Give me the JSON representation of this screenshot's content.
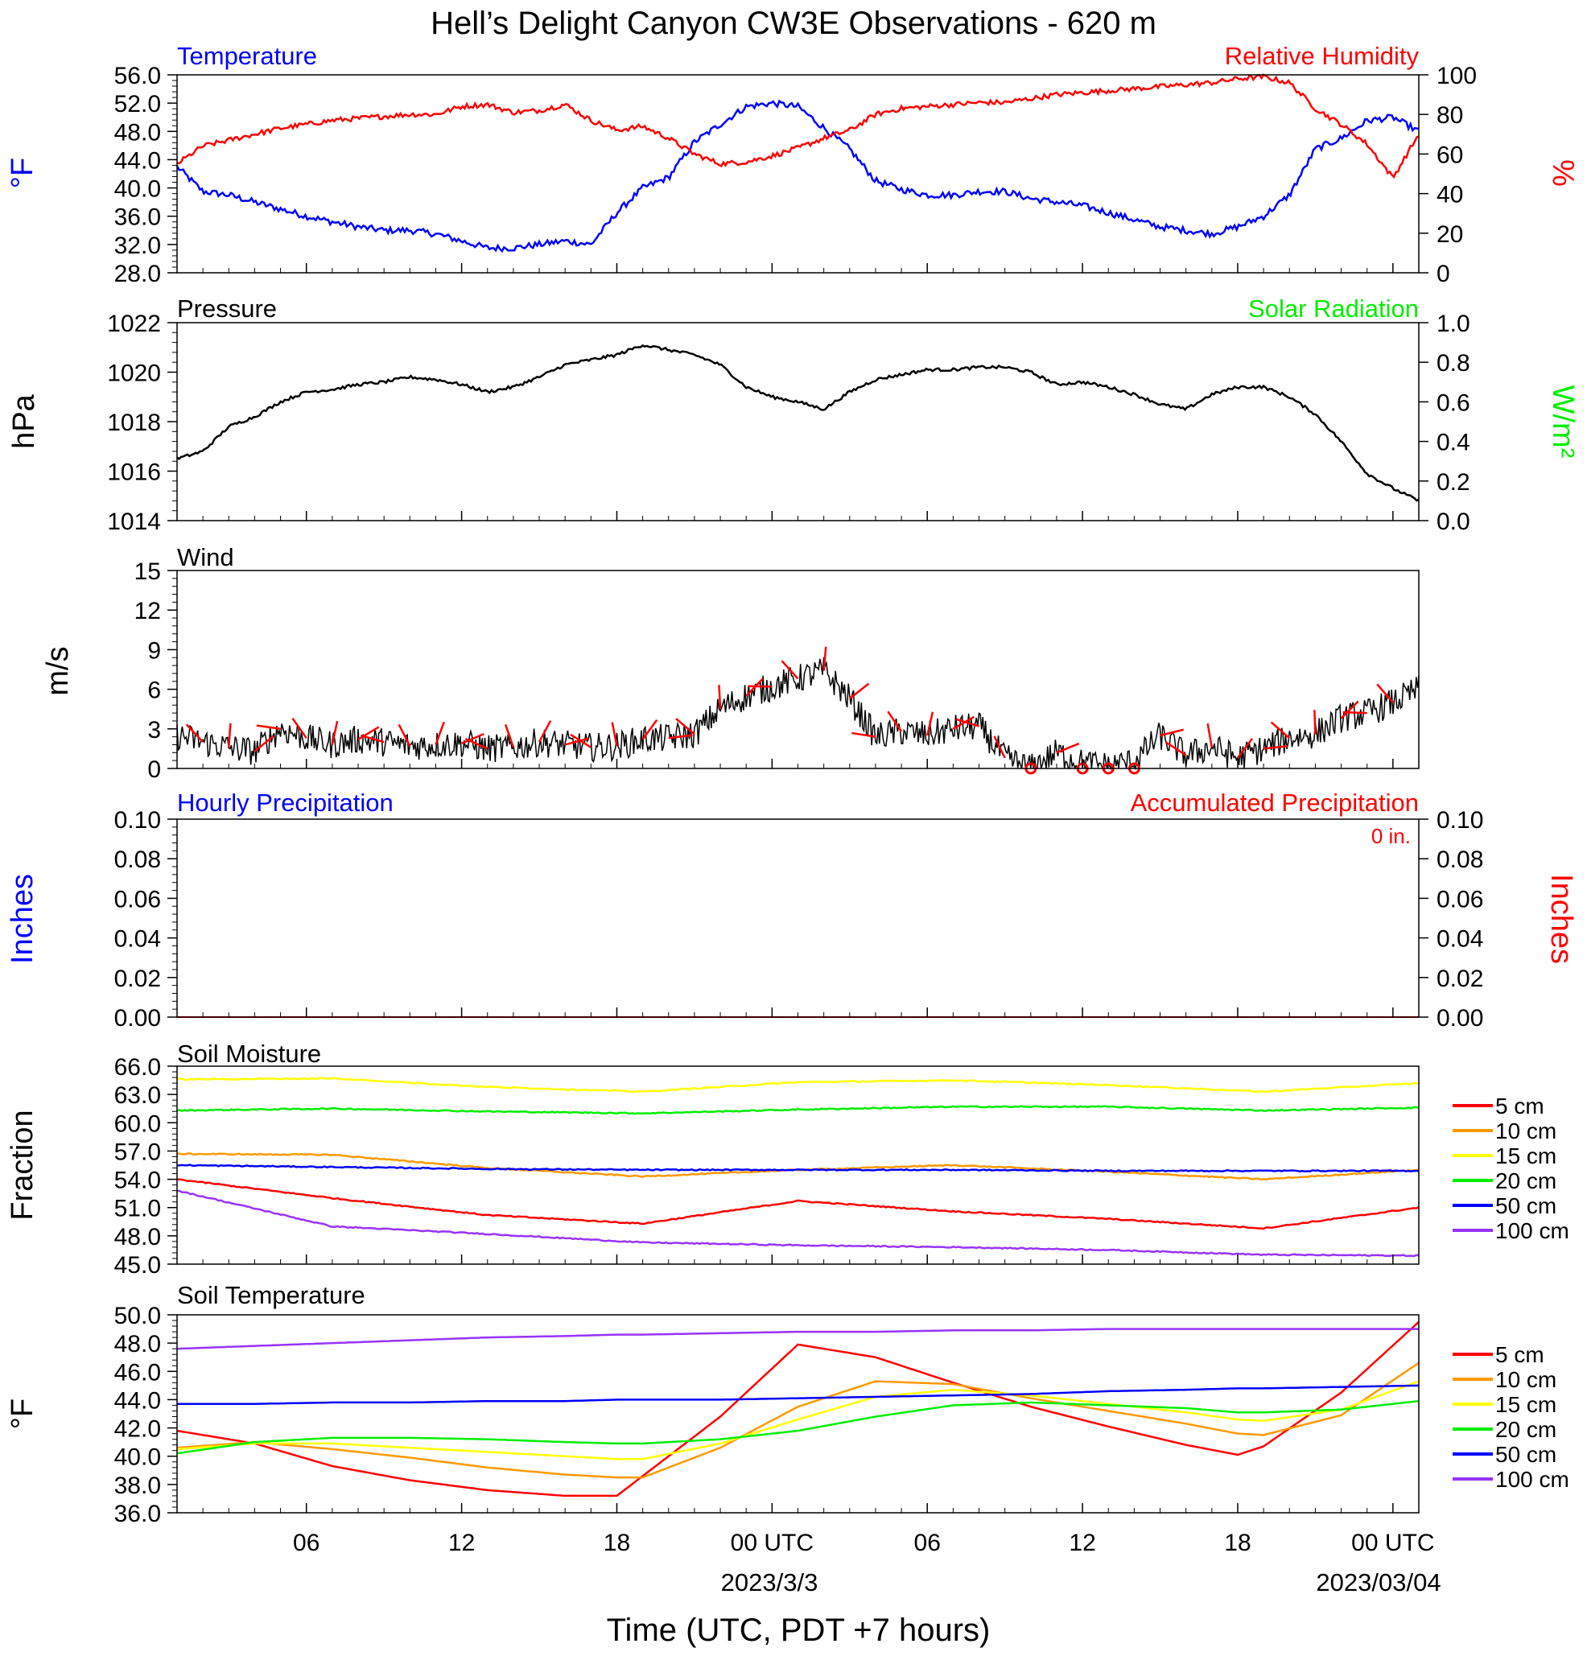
{
  "title": "Hell’s Delight Canyon CW3E Observations - 620 m",
  "xlabel": "Time (UTC, PDT +7 hours)",
  "x_ticks": [
    "06",
    "12",
    "18",
    "00 UTC",
    "06",
    "12",
    "18",
    "00 UTC"
  ],
  "date_labels": [
    "2023/3/3",
    "2023/03/04"
  ],
  "colors": {
    "blue": "#0000ff",
    "red": "#ff0000",
    "green": "#00ee00",
    "orange": "#ff9900",
    "yellow": "#ffff00",
    "purple": "#9933ff",
    "black": "#000000"
  },
  "panels": {
    "temperature": {
      "title_left": "Temperature",
      "title_right": "Relative Humidity",
      "left_unit": "°F",
      "right_unit": "%",
      "left_ticks": [
        "56.0",
        "52.0",
        "48.0",
        "44.0",
        "40.0",
        "36.0",
        "32.0",
        "28.0"
      ],
      "right_ticks": [
        "100",
        "80",
        "60",
        "40",
        "20",
        "0"
      ]
    },
    "pressure": {
      "title_left": "Pressure",
      "title_right": "Solar Radiation",
      "left_unit": "hPa",
      "right_unit": "W/m²",
      "left_ticks": [
        "1022",
        "1020",
        "1018",
        "1016",
        "1014"
      ],
      "right_ticks": [
        "1.0",
        "0.8",
        "0.6",
        "0.4",
        "0.2",
        "0.0"
      ]
    },
    "wind": {
      "title_left": "Wind",
      "left_unit": "m/s",
      "left_ticks": [
        "15",
        "12",
        "9",
        "6",
        "3",
        "0"
      ]
    },
    "precip": {
      "title_left": "Hourly Precipitation",
      "title_right": "Accumulated Precipitation",
      "total_label": "0 in.",
      "left_unit": "Inches",
      "right_unit": "Inches",
      "left_ticks": [
        "0.10",
        "0.08",
        "0.06",
        "0.04",
        "0.02",
        "0.00"
      ],
      "right_ticks": [
        "0.10",
        "0.08",
        "0.06",
        "0.04",
        "0.02",
        "0.00"
      ]
    },
    "soil_moisture": {
      "title_left": "Soil Moisture",
      "left_unit": "Fraction",
      "left_ticks": [
        "66.0",
        "63.0",
        "60.0",
        "57.0",
        "54.0",
        "51.0",
        "48.0",
        "45.0"
      ],
      "legend": [
        "5 cm",
        "10 cm",
        "15 cm",
        "20 cm",
        "50 cm",
        "100 cm"
      ]
    },
    "soil_temperature": {
      "title_left": "Soil Temperature",
      "left_unit": "°F",
      "left_ticks": [
        "50.0",
        "48.0",
        "46.0",
        "44.0",
        "42.0",
        "40.0",
        "38.0",
        "36.0"
      ],
      "legend": [
        "5 cm",
        "10 cm",
        "15 cm",
        "20 cm",
        "50 cm",
        "100 cm"
      ]
    }
  },
  "chart_data": [
    {
      "type": "line",
      "title": "Temperature / Relative Humidity",
      "x_unit": "hours since 2023-03-02 01 UTC",
      "x": [
        0,
        1,
        2,
        3,
        4,
        5,
        6,
        7,
        8,
        9,
        10,
        11,
        12,
        13,
        14,
        15,
        16,
        17,
        18,
        19,
        20,
        21,
        22,
        23,
        24,
        25,
        26,
        27,
        28,
        29,
        30,
        31,
        32,
        33,
        34,
        35,
        36,
        37,
        38,
        39,
        40,
        41,
        42,
        43,
        44,
        45,
        46,
        47,
        48
      ],
      "ylim_left": [
        28,
        56
      ],
      "ylim_right": [
        0,
        100
      ],
      "series": [
        {
          "name": "Temperature",
          "axis": "left",
          "unit": "°F",
          "values": [
            43,
            39.5,
            39,
            38,
            37,
            36,
            35.2,
            34.5,
            34,
            34,
            33.5,
            32.5,
            31.5,
            31.5,
            32,
            32.5,
            32,
            36.5,
            40,
            41.5,
            46.5,
            49,
            51.5,
            52,
            51.5,
            48.5,
            45.5,
            41,
            39.8,
            39,
            39,
            39.5,
            39.5,
            38.5,
            38,
            37.5,
            36.5,
            35.5,
            34.5,
            34,
            33.5,
            34.5,
            36,
            39,
            45.5,
            47,
            49.5,
            50,
            48
          ]
        },
        {
          "name": "Relative Humidity",
          "axis": "right",
          "unit": "%",
          "values": [
            55,
            64,
            67,
            70,
            73,
            75,
            77,
            78,
            79,
            80,
            80,
            84,
            85,
            81,
            82,
            85,
            77,
            72,
            74,
            68,
            60,
            55,
            56,
            59,
            63,
            68,
            72,
            80,
            83,
            84,
            85,
            86,
            86,
            88,
            90,
            91,
            92,
            93,
            94,
            95,
            96,
            98,
            99,
            96,
            83,
            75,
            65,
            48,
            70
          ]
        }
      ]
    },
    {
      "type": "line",
      "title": "Pressure",
      "x_unit": "hours since 2023-03-02 01 UTC",
      "x": [
        0,
        1,
        2,
        3,
        4,
        5,
        6,
        7,
        8,
        9,
        10,
        11,
        12,
        13,
        14,
        15,
        16,
        17,
        18,
        19,
        20,
        21,
        22,
        23,
        24,
        25,
        26,
        27,
        28,
        29,
        30,
        31,
        32,
        33,
        34,
        35,
        36,
        37,
        38,
        39,
        40,
        41,
        42,
        43,
        44,
        45,
        46,
        47,
        48
      ],
      "ylim": [
        1014,
        1022
      ],
      "series": [
        {
          "name": "Pressure",
          "unit": "hPa",
          "values": [
            1016.5,
            1016.8,
            1017.8,
            1018.2,
            1018.8,
            1019.2,
            1019.3,
            1019.5,
            1019.6,
            1019.8,
            1019.7,
            1019.5,
            1019.2,
            1019.4,
            1019.8,
            1020.3,
            1020.5,
            1020.7,
            1021.1,
            1020.9,
            1020.7,
            1020.3,
            1019.4,
            1019.0,
            1018.8,
            1018.5,
            1019.2,
            1019.7,
            1019.9,
            1020.1,
            1020.1,
            1020.2,
            1020.2,
            1020.0,
            1019.5,
            1019.6,
            1019.4,
            1019.1,
            1018.7,
            1018.5,
            1019.1,
            1019.4,
            1019.4,
            1019.0,
            1018.3,
            1017.2,
            1015.9,
            1015.3,
            1014.8
          ]
        }
      ]
    },
    {
      "type": "line",
      "title": "Wind",
      "x_unit": "hours since 2023-03-02 01 UTC",
      "x": [
        0,
        1,
        2,
        3,
        4,
        5,
        6,
        7,
        8,
        9,
        10,
        11,
        12,
        13,
        14,
        15,
        16,
        17,
        18,
        19,
        20,
        21,
        22,
        23,
        24,
        25,
        26,
        27,
        28,
        29,
        30,
        31,
        32,
        33,
        34,
        35,
        36,
        37,
        38,
        39,
        40,
        41,
        42,
        43,
        44,
        45,
        46,
        47,
        48
      ],
      "ylim": [
        0,
        15
      ],
      "series": [
        {
          "name": "Wind speed",
          "unit": "m/s",
          "values": [
            2.5,
            2.0,
            1.6,
            1.3,
            3.0,
            2.3,
            1.8,
            2.2,
            2.0,
            1.7,
            1.8,
            1.9,
            1.5,
            1.6,
            2.0,
            1.8,
            1.6,
            1.7,
            2.2,
            2.3,
            2.6,
            4.5,
            5.5,
            6.2,
            6.8,
            7.4,
            5.3,
            2.4,
            2.8,
            2.5,
            3.0,
            3.2,
            0.8,
            0,
            1.2,
            0.4,
            0.2,
            0.5,
            2.5,
            1.0,
            1.6,
            0.8,
            1.5,
            2.3,
            2.6,
            3.8,
            4.2,
            5.0,
            6.0
          ]
        }
      ]
    },
    {
      "type": "line",
      "title": "Hourly Precipitation / Accumulated Precipitation",
      "x_unit": "hours since 2023-03-02 01 UTC",
      "x": [
        0,
        48
      ],
      "ylim": [
        0,
        0.1
      ],
      "series": [
        {
          "name": "Hourly Precipitation",
          "unit": "in",
          "values": [
            0,
            0
          ]
        },
        {
          "name": "Accumulated Precipitation",
          "unit": "in",
          "values": [
            0,
            0
          ]
        }
      ]
    },
    {
      "type": "line",
      "title": "Soil Moisture",
      "x_unit": "hours since 2023-03-02 01 UTC",
      "x": [
        0,
        6,
        12,
        18,
        24,
        30,
        36,
        42,
        48
      ],
      "ylim": [
        45,
        66
      ],
      "series": [
        {
          "name": "5 cm",
          "values": [
            54.0,
            52.0,
            50.2,
            49.3,
            51.7,
            50.6,
            49.8,
            48.8,
            51.0
          ]
        },
        {
          "name": "10 cm",
          "values": [
            56.7,
            56.6,
            55.2,
            54.3,
            55.0,
            55.5,
            54.8,
            54.0,
            55.0
          ]
        },
        {
          "name": "15 cm",
          "values": [
            64.6,
            64.7,
            63.8,
            63.3,
            64.3,
            64.5,
            64.0,
            63.3,
            64.2
          ]
        },
        {
          "name": "20 cm",
          "values": [
            61.3,
            61.5,
            61.2,
            61.0,
            61.4,
            61.7,
            61.7,
            61.3,
            61.6
          ]
        },
        {
          "name": "50 cm",
          "values": [
            55.5,
            55.3,
            55.1,
            55.0,
            55.0,
            55.0,
            54.9,
            54.9,
            54.9
          ]
        },
        {
          "name": "100 cm",
          "values": [
            52.8,
            49.0,
            48.2,
            47.3,
            47.0,
            46.8,
            46.5,
            46.0,
            45.9
          ]
        }
      ]
    },
    {
      "type": "line",
      "title": "Soil Temperature",
      "x_unit": "hours since 2023-03-02 01 UTC",
      "x": [
        0,
        3,
        6,
        9,
        12,
        15,
        17,
        18,
        21,
        24,
        27,
        30,
        33,
        36,
        39,
        41,
        42,
        45,
        48
      ],
      "ylim": [
        36,
        50
      ],
      "series": [
        {
          "name": "5 cm",
          "values": [
            41.8,
            40.9,
            39.3,
            38.3,
            37.6,
            37.2,
            37.2,
            38.6,
            42.8,
            47.9,
            47.0,
            45.2,
            43.5,
            42.1,
            40.8,
            40.1,
            40.7,
            44.5,
            49.5
          ]
        },
        {
          "name": "10 cm",
          "values": [
            40.6,
            41.0,
            40.5,
            39.9,
            39.2,
            38.7,
            38.5,
            38.5,
            40.6,
            43.5,
            45.3,
            45.1,
            44.1,
            43.2,
            42.3,
            41.6,
            41.5,
            42.9,
            46.6
          ]
        },
        {
          "name": "15 cm",
          "values": [
            40.5,
            40.9,
            40.9,
            40.6,
            40.3,
            40.0,
            39.8,
            39.8,
            40.9,
            42.6,
            44.2,
            44.7,
            44.3,
            43.7,
            43.1,
            42.6,
            42.5,
            43.3,
            45.3
          ]
        },
        {
          "name": "20 cm",
          "values": [
            40.2,
            41.0,
            41.3,
            41.3,
            41.2,
            41.0,
            40.9,
            40.9,
            41.2,
            41.8,
            42.8,
            43.6,
            43.8,
            43.6,
            43.4,
            43.1,
            43.1,
            43.3,
            43.9
          ]
        },
        {
          "name": "50 cm",
          "values": [
            43.7,
            43.7,
            43.8,
            43.8,
            43.9,
            43.9,
            44.0,
            44.0,
            44.0,
            44.1,
            44.2,
            44.3,
            44.4,
            44.6,
            44.7,
            44.8,
            44.8,
            44.9,
            45.0
          ]
        },
        {
          "name": "100 cm",
          "values": [
            47.6,
            47.8,
            48.0,
            48.2,
            48.4,
            48.5,
            48.6,
            48.6,
            48.7,
            48.8,
            48.8,
            48.9,
            48.9,
            49.0,
            49.0,
            49.0,
            49.0,
            49.0,
            49.0
          ]
        }
      ]
    }
  ]
}
